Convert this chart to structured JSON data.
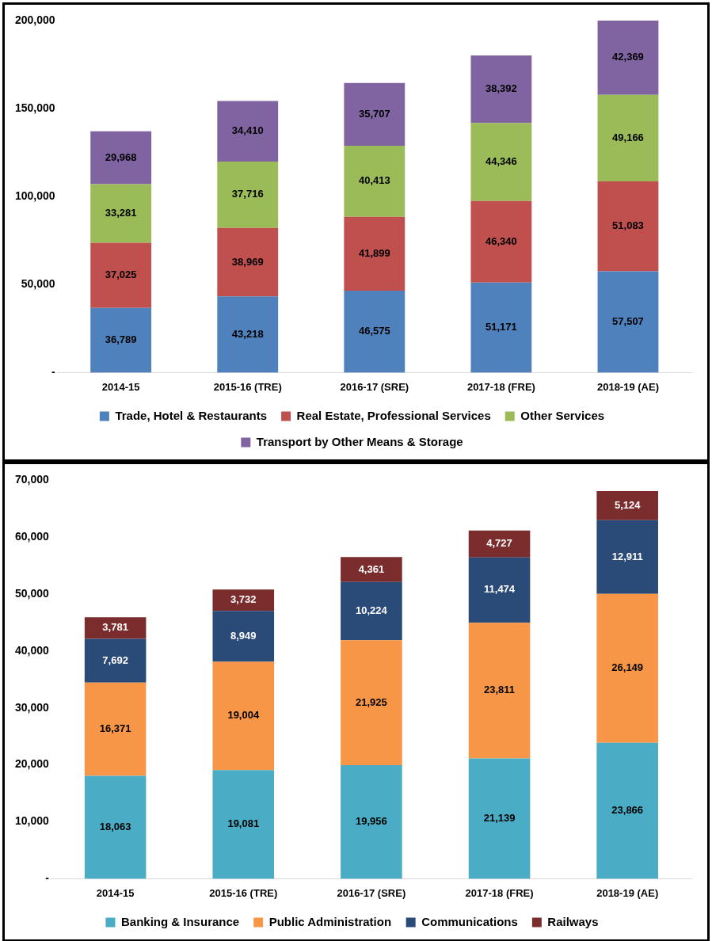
{
  "chart_data": [
    {
      "type": "bar",
      "stacked": true,
      "legend": "bottom",
      "categories": [
        "2014-15",
        "2015-16 (TRE)",
        "2016-17 (SRE)",
        "2017-18 (FRE)",
        "2018-19 (AE)"
      ],
      "ylim": [
        0,
        200000
      ],
      "yticks": [
        {
          "value": 0,
          "label": "-"
        },
        {
          "value": 50000,
          "label": "50,000"
        },
        {
          "value": 100000,
          "label": "100,000"
        },
        {
          "value": 150000,
          "label": "150,000"
        },
        {
          "value": 200000,
          "label": "200,000"
        }
      ],
      "series": [
        {
          "name": "Trade, Hotel & Restaurants",
          "color": "#4f81bd",
          "values": [
            36789,
            43218,
            46575,
            51171,
            57507
          ],
          "value_labels": [
            "36,789",
            "43,218",
            "46,575",
            "51,171",
            "57,507"
          ]
        },
        {
          "name": "Real Estate, Professional Services",
          "color": "#c0504d",
          "values": [
            37025,
            38969,
            41899,
            46340,
            51083
          ],
          "value_labels": [
            "37,025",
            "38,969",
            "41,899",
            "46,340",
            "51,083"
          ]
        },
        {
          "name": "Other Services",
          "color": "#9bbb59",
          "values": [
            33281,
            37716,
            40413,
            44346,
            49166
          ],
          "value_labels": [
            "33,281",
            "37,716",
            "40,413",
            "44,346",
            "49,166"
          ]
        },
        {
          "name": "Transport by Other Means & Storage",
          "color": "#8064a2",
          "values": [
            29968,
            34410,
            35707,
            38392,
            42369
          ],
          "value_labels": [
            "29,968",
            "34,410",
            "35,707",
            "38,392",
            "42,369"
          ]
        }
      ]
    },
    {
      "type": "bar",
      "stacked": true,
      "legend": "bottom",
      "categories": [
        "2014-15",
        "2015-16 (TRE)",
        "2016-17 (SRE)",
        "2017-18 (FRE)",
        "2018-19 (AE)"
      ],
      "ylim": [
        0,
        70000
      ],
      "yticks": [
        {
          "value": 0,
          "label": "-"
        },
        {
          "value": 10000,
          "label": "10,000"
        },
        {
          "value": 20000,
          "label": "20,000"
        },
        {
          "value": 30000,
          "label": "30,000"
        },
        {
          "value": 40000,
          "label": "40,000"
        },
        {
          "value": 50000,
          "label": "50,000"
        },
        {
          "value": 60000,
          "label": "60,000"
        },
        {
          "value": 70000,
          "label": "70,000"
        }
      ],
      "series": [
        {
          "name": "Banking & Insurance",
          "color": "#4bacc6",
          "values": [
            18063,
            19081,
            19956,
            21139,
            23866
          ],
          "value_labels": [
            "18,063",
            "19,081",
            "19,956",
            "21,139",
            "23,866"
          ]
        },
        {
          "name": "Public Administration",
          "color": "#f79646",
          "values": [
            16371,
            19004,
            21925,
            23811,
            26149
          ],
          "value_labels": [
            "16,371",
            "19,004",
            "21,925",
            "23,811",
            "26,149"
          ]
        },
        {
          "name": "Communications",
          "color": "#2a4a78",
          "values": [
            7692,
            8949,
            10224,
            11474,
            12911
          ],
          "value_labels": [
            "7,692",
            "8,949",
            "10,224",
            "11,474",
            "12,911"
          ]
        },
        {
          "name": "Railways",
          "color": "#7b2c2c",
          "values": [
            3781,
            3732,
            4361,
            4727,
            5124
          ],
          "value_labels": [
            "3,781",
            "3,732",
            "4,361",
            "4,727",
            "5,124"
          ]
        }
      ]
    }
  ]
}
